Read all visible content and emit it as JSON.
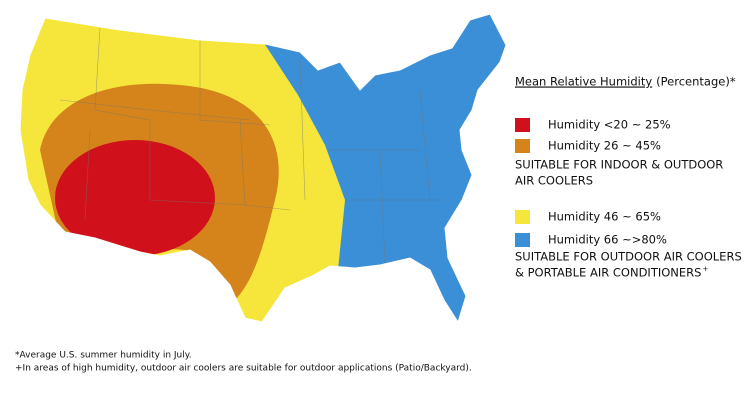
{
  "legend": {
    "title": "Mean Relative Humidity",
    "title_suffix": "(Percentage)*",
    "items": [
      {
        "label": "Humidity <20 ~ 25%",
        "color": "#d0111b"
      },
      {
        "label": "Humidity  26 ~ 45%",
        "color": "#d4841a"
      },
      {
        "label": "Humidity  46 ~ 65%",
        "color": "#f6e63c"
      },
      {
        "label": "Humidity  66 ~>80%",
        "color": "#3a8fd6"
      }
    ],
    "notes": [
      {
        "lines": [
          "SUITABLE FOR INDOOR & OUTDOOR",
          "AIR COOLERS"
        ]
      },
      {
        "lines": [
          "SUITABLE FOR OUTDOOR AIR COOLERS",
          "& PORTABLE AIR CONDITIONERS"
        ],
        "sup": "+"
      }
    ]
  },
  "footnotes": [
    "*Average U.S. summer humidity in July.",
    "+In areas of high humidity, outdoor air coolers are suitable for outdoor applications (Patio/Backyard)."
  ]
}
